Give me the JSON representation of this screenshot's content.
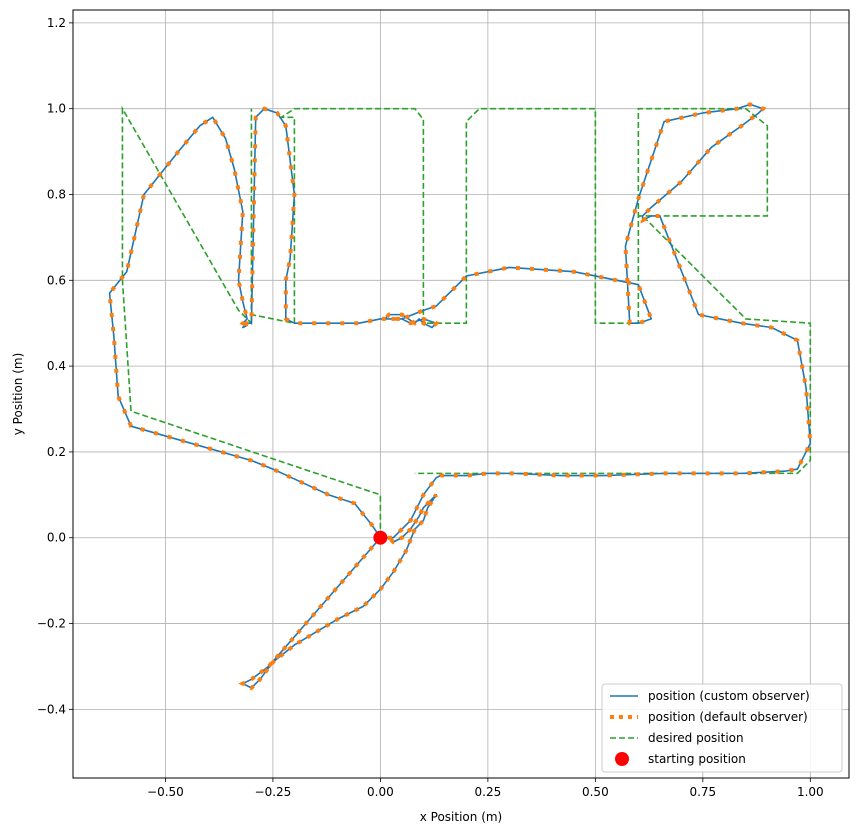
{
  "chart_data": {
    "type": "line",
    "xlabel": "x Position (m)",
    "ylabel": "y Position (m)",
    "xlim": [
      -0.715,
      1.09
    ],
    "ylim": [
      -0.56,
      1.23
    ],
    "xticks": [
      -0.5,
      -0.25,
      0.0,
      0.25,
      0.5,
      0.75,
      1.0
    ],
    "xtick_labels": [
      "−0.50",
      "−0.25",
      "0.00",
      "0.25",
      "0.50",
      "0.75",
      "1.00"
    ],
    "yticks": [
      -0.4,
      -0.2,
      0.0,
      0.2,
      0.4,
      0.6,
      0.8,
      1.0,
      1.2
    ],
    "ytick_labels": [
      "−0.4",
      "−0.2",
      "0.0",
      "0.2",
      "0.4",
      "0.6",
      "0.8",
      "1.0",
      "1.2"
    ],
    "grid": true,
    "legend_position": "lower-right",
    "series": [
      {
        "name": "position (custom observer)",
        "style": "solid",
        "color": "#1f77b4",
        "x": [
          0.0,
          -0.02,
          -0.06,
          -0.12,
          -0.25,
          -0.3,
          -0.58,
          -0.61,
          -0.62,
          -0.63,
          -0.59,
          -0.55,
          -0.47,
          -0.42,
          -0.39,
          -0.36,
          -0.34,
          -0.32,
          -0.33,
          -0.32,
          -0.31,
          -0.32,
          -0.31,
          -0.32,
          -0.31,
          -0.3,
          -0.29,
          -0.27,
          -0.24,
          -0.22,
          -0.21,
          -0.2,
          -0.21,
          -0.22,
          -0.22,
          -0.2,
          -0.15,
          -0.05,
          0.0,
          0.05,
          0.07,
          0.1,
          0.13,
          0.12,
          0.1,
          0.1,
          0.09,
          0.08,
          0.05,
          0.02,
          0.01,
          0.05,
          0.1,
          0.13,
          0.15,
          0.2,
          0.3,
          0.45,
          0.6,
          0.63,
          0.6,
          0.58,
          0.57,
          0.6,
          0.62,
          0.66,
          0.75,
          0.83,
          0.86,
          0.89,
          0.88,
          0.84,
          0.77,
          0.7,
          0.63,
          0.61,
          0.61,
          0.63,
          0.65,
          0.74,
          0.84,
          0.91,
          0.97,
          0.99,
          1.0,
          0.99,
          0.97,
          0.94,
          0.84,
          0.66,
          0.52,
          0.42,
          0.31,
          0.25,
          0.2,
          0.14,
          0.13,
          0.1,
          0.07,
          0.03,
          0.0
        ],
        "y": [
          0.0,
          0.03,
          0.08,
          0.1,
          0.16,
          0.18,
          0.26,
          0.33,
          0.47,
          0.57,
          0.62,
          0.8,
          0.9,
          0.96,
          0.98,
          0.93,
          0.86,
          0.76,
          0.6,
          0.55,
          0.51,
          0.5,
          0.495,
          0.49,
          0.5,
          0.5,
          0.98,
          1.0,
          0.99,
          0.96,
          0.88,
          0.8,
          0.65,
          0.6,
          0.51,
          0.5,
          0.5,
          0.5,
          0.51,
          0.51,
          0.5,
          0.51,
          0.5,
          0.49,
          0.5,
          0.5,
          0.51,
          0.5,
          0.52,
          0.52,
          0.51,
          0.51,
          0.53,
          0.54,
          0.56,
          0.61,
          0.63,
          0.62,
          0.59,
          0.51,
          0.5,
          0.5,
          0.68,
          0.79,
          0.85,
          0.97,
          0.99,
          1.0,
          1.01,
          1.0,
          0.99,
          0.96,
          0.91,
          0.83,
          0.77,
          0.75,
          0.74,
          0.75,
          0.75,
          0.52,
          0.5,
          0.49,
          0.46,
          0.35,
          0.22,
          0.2,
          0.16,
          0.155,
          0.15,
          0.15,
          0.145,
          0.145,
          0.15,
          0.15,
          0.145,
          0.145,
          0.14,
          0.1,
          0.04,
          0.0,
          0.0
        ],
        "note_ignore": "",
        "path_main": [
          [
            0.0,
            0.0
          ],
          [
            0.02,
            0.0
          ],
          [
            0.03,
            -0.01
          ],
          [
            0.05,
            0.0
          ],
          [
            0.07,
            0.02
          ],
          [
            0.09,
            0.05
          ],
          [
            0.1,
            0.07
          ],
          [
            0.11,
            0.08
          ],
          [
            0.12,
            0.09
          ],
          [
            0.13,
            0.1
          ],
          [
            0.11,
            0.07
          ],
          [
            0.1,
            0.04
          ],
          [
            0.08,
            0.02
          ],
          [
            0.06,
            -0.03
          ],
          [
            0.03,
            -0.08
          ],
          [
            0.0,
            -0.12
          ],
          [
            -0.04,
            -0.16
          ],
          [
            -0.1,
            -0.19
          ],
          [
            -0.15,
            -0.22
          ],
          [
            -0.2,
            -0.25
          ],
          [
            -0.25,
            -0.29
          ],
          [
            -0.28,
            -0.33
          ],
          [
            -0.3,
            -0.35
          ],
          [
            -0.32,
            -0.34
          ],
          [
            -0.3,
            -0.33
          ],
          [
            -0.26,
            -0.3
          ],
          [
            0.0,
            0.0
          ]
        ]
      },
      {
        "name": "position (default observer)",
        "style": "dotted",
        "color": "#ff7f0e"
      },
      {
        "name": "desired position",
        "style": "dashed",
        "color": "#2ca02c",
        "x": [
          0.0,
          0.0,
          -0.06,
          -0.58,
          -0.6,
          -0.6,
          -0.6,
          -0.33,
          -0.3,
          -0.3,
          -0.3,
          -0.3,
          -0.2,
          -0.2,
          -0.23,
          -0.2,
          0.08,
          0.1,
          0.1,
          0.1,
          0.1,
          0.2,
          0.2,
          0.2,
          0.23,
          0.5,
          0.5,
          0.5,
          0.5,
          0.6,
          0.6,
          0.6,
          0.6,
          0.63,
          0.85,
          0.9,
          0.9,
          0.62,
          0.6,
          0.6,
          0.62,
          0.85,
          1.0,
          1.0,
          0.97,
          0.08
        ],
        "y": [
          0.0,
          0.1,
          0.12,
          0.295,
          0.6,
          0.96,
          1.0,
          0.53,
          0.5,
          1.0,
          0.5,
          0.52,
          0.5,
          0.98,
          0.98,
          1.0,
          1.0,
          0.975,
          0.5,
          0.5,
          0.5,
          0.5,
          0.97,
          0.97,
          1.0,
          1.0,
          0.5,
          0.5,
          0.5,
          0.5,
          0.97,
          0.97,
          1.0,
          1.0,
          1.0,
          0.96,
          0.75,
          0.75,
          0.75,
          0.75,
          0.74,
          0.51,
          0.5,
          0.18,
          0.15,
          0.15
        ]
      },
      {
        "name": "starting position",
        "style": "marker",
        "color": "#ff0000",
        "x": [
          0.0
        ],
        "y": [
          0.0
        ]
      }
    ]
  },
  "legend": {
    "items": [
      {
        "label": "position (custom observer)",
        "style": "solid",
        "color": "#1f77b4"
      },
      {
        "label": "position (default observer)",
        "style": "dotted",
        "color": "#ff7f0e"
      },
      {
        "label": "desired position",
        "style": "dashed",
        "color": "#2ca02c"
      },
      {
        "label": "starting position",
        "style": "marker",
        "color": "#ff0000"
      }
    ]
  }
}
